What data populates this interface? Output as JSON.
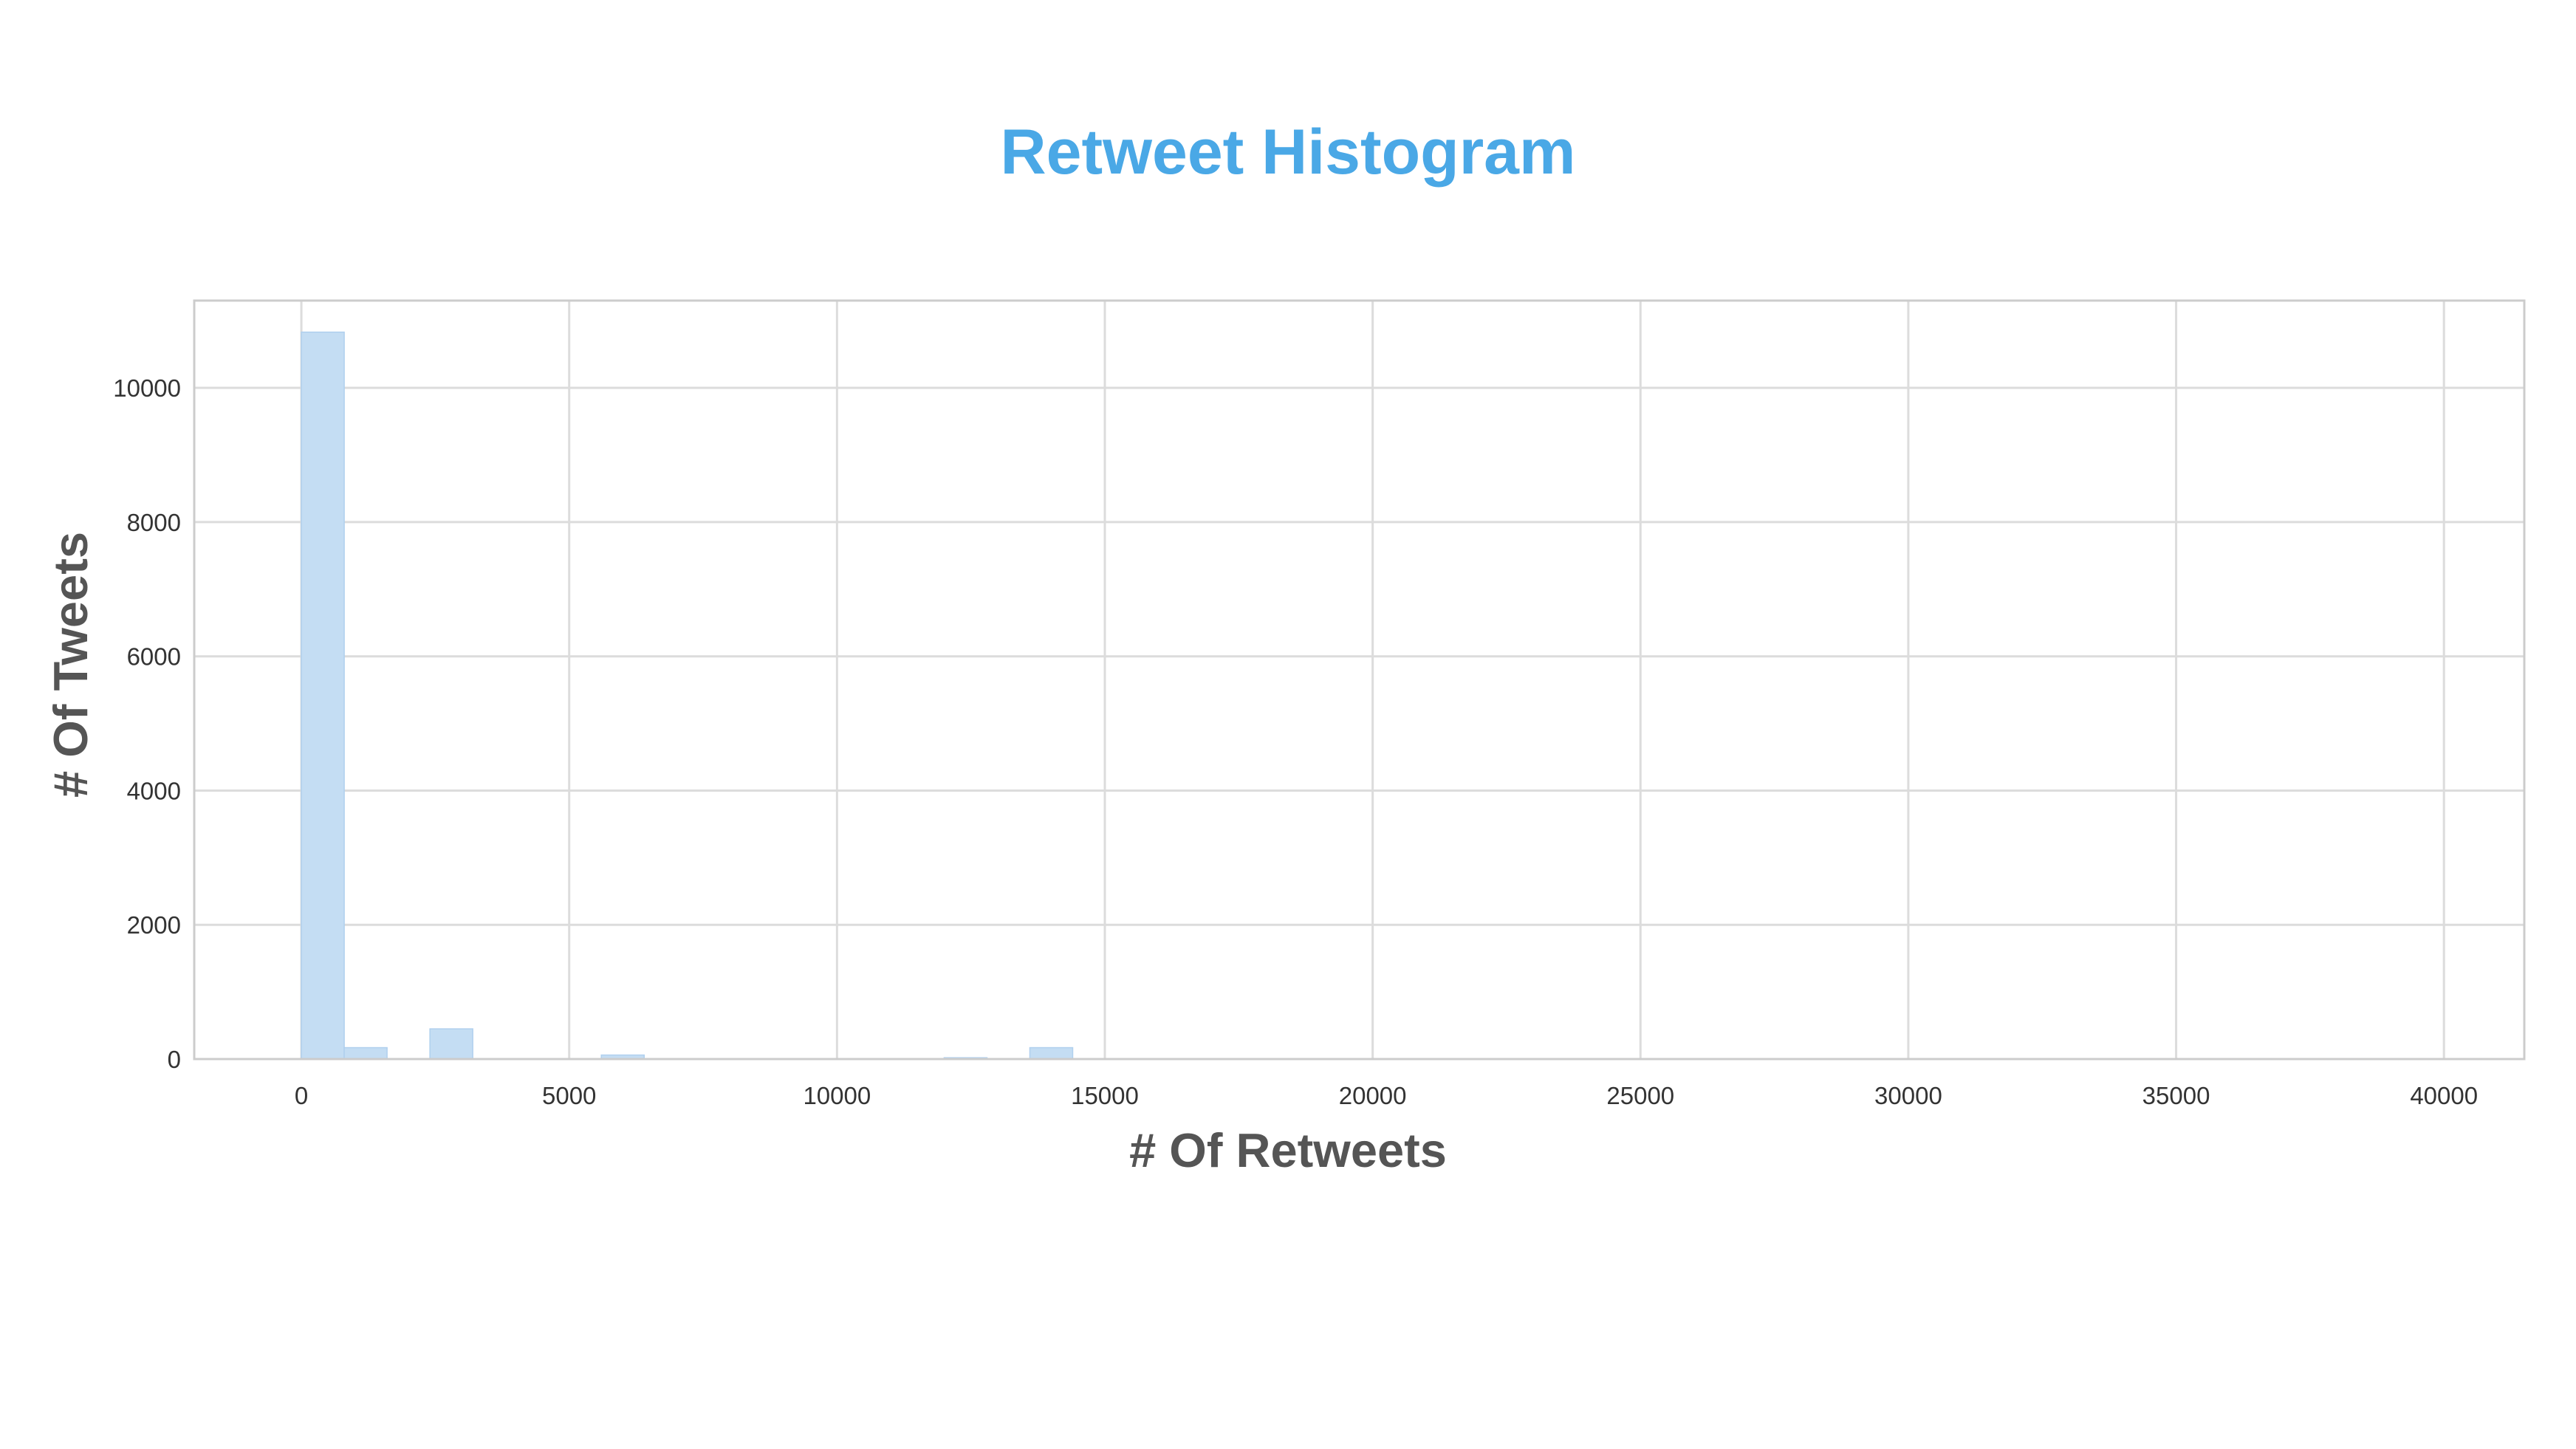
{
  "colors": {
    "title": "#4aa8e6",
    "bar_fill": "#c4ddf3",
    "bar_stroke": "#b0d0ee",
    "grid": "#dcdcdc",
    "frame": "#cccccc",
    "axis_label": "#555555",
    "tick_label": "#333333"
  },
  "chart_data": {
    "type": "bar",
    "title": "Retweet Histogram",
    "xlabel": "# Of Retweets",
    "ylabel": "# Of Tweets",
    "xlim": [
      -2000,
      41500
    ],
    "ylim": [
      0,
      11300
    ],
    "grid": true,
    "xticks": [
      0,
      5000,
      10000,
      15000,
      20000,
      25000,
      30000,
      35000,
      40000
    ],
    "yticks": [
      0,
      2000,
      4000,
      6000,
      8000,
      10000
    ],
    "bin_width": 800,
    "bin_starts": [
      0,
      800,
      2400,
      5600,
      12000,
      13600
    ],
    "values": [
      10830,
      170,
      450,
      60,
      20,
      170
    ]
  }
}
